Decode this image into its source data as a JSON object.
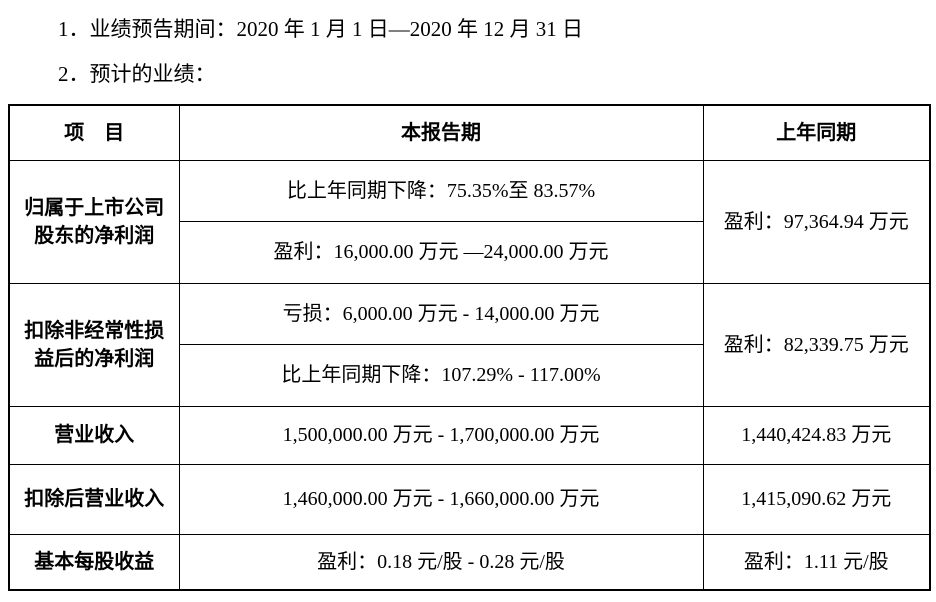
{
  "colors": {
    "background": "#ffffff",
    "text": "#000000",
    "table_border": "#000000"
  },
  "intro": {
    "line1": "1．业绩预告期间：2020 年 1 月 1 日—2020 年 12 月 31 日",
    "line2": "2．预计的业绩："
  },
  "table": {
    "header": {
      "item": "项　目",
      "current_period": "本报告期",
      "prior_period": "上年同期"
    },
    "rows": [
      {
        "label": "归属于上市公司股东的净利润",
        "current_sub1": "比上年同期下降：75.35%至 83.57%",
        "current_sub2": "盈利：16,000.00 万元 —24,000.00 万元",
        "prior": "盈利：97,364.94 万元"
      },
      {
        "label": "扣除非经常性损益后的净利润",
        "current_sub1": "亏损：6,000.00 万元 - 14,000.00 万元",
        "current_sub2": "比上年同期下降：107.29% - 117.00%",
        "prior": "盈利：82,339.75 万元"
      },
      {
        "label": "营业收入",
        "current": "1,500,000.00 万元 - 1,700,000.00 万元",
        "prior": "1,440,424.83 万元"
      },
      {
        "label": "扣除后营业收入",
        "current": "1,460,000.00 万元 - 1,660,000.00 万元",
        "prior": "1,415,090.62 万元"
      },
      {
        "label": "基本每股收益",
        "current": "盈利：0.18 元/股 - 0.28 元/股",
        "prior": "盈利：1.11 元/股"
      }
    ]
  }
}
